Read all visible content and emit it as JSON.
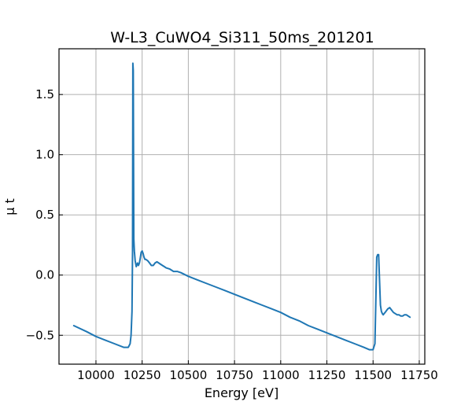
{
  "chart_data": {
    "type": "line",
    "title": "W-L3_CuWO4_Si311_50ms_201201",
    "xlabel": "Energy [eV]",
    "ylabel": "μ t",
    "xlim": [
      9800,
      11780
    ],
    "ylim": [
      -0.74,
      1.88
    ],
    "xticks": [
      10000,
      10250,
      10500,
      10750,
      11000,
      11250,
      11500,
      11750
    ],
    "yticks": [
      -0.5,
      0.0,
      0.5,
      1.0,
      1.5
    ],
    "ytick_labels": [
      "−0.5",
      "0.0",
      "0.5",
      "1.0",
      "1.5"
    ],
    "grid": true,
    "colors": {
      "series": "#1f77b4"
    },
    "series": [
      {
        "x": [
          9880,
          9950,
          10000,
          10050,
          10100,
          10150,
          10175,
          10185,
          10190,
          10195,
          10198,
          10200,
          10202,
          10205,
          10208,
          10212,
          10218,
          10225,
          10230,
          10235,
          10240,
          10245,
          10250,
          10255,
          10260,
          10265,
          10270,
          10280,
          10290,
          10300,
          10310,
          10320,
          10330,
          10340,
          10350,
          10360,
          10370,
          10380,
          10400,
          10420,
          10440,
          10460,
          10500,
          10550,
          10600,
          10650,
          10700,
          10750,
          10800,
          10850,
          10900,
          10950,
          11000,
          11050,
          11100,
          11150,
          11200,
          11250,
          11300,
          11350,
          11400,
          11450,
          11480,
          11500,
          11510,
          11515,
          11520,
          11525,
          11530,
          11535,
          11540,
          11545,
          11550,
          11555,
          11560,
          11570,
          11580,
          11590,
          11600,
          11610,
          11620,
          11630,
          11640,
          11650,
          11660,
          11670,
          11680,
          11690,
          11700
        ],
        "y": [
          -0.42,
          -0.47,
          -0.51,
          -0.54,
          -0.57,
          -0.6,
          -0.6,
          -0.57,
          -0.5,
          -0.3,
          0.2,
          1.76,
          1.7,
          0.3,
          0.2,
          0.12,
          0.07,
          0.1,
          0.08,
          0.1,
          0.14,
          0.19,
          0.2,
          0.18,
          0.15,
          0.13,
          0.13,
          0.12,
          0.1,
          0.08,
          0.08,
          0.1,
          0.11,
          0.1,
          0.09,
          0.08,
          0.07,
          0.06,
          0.05,
          0.03,
          0.03,
          0.02,
          -0.01,
          -0.04,
          -0.07,
          -0.1,
          -0.13,
          -0.16,
          -0.19,
          -0.22,
          -0.25,
          -0.28,
          -0.31,
          -0.35,
          -0.38,
          -0.42,
          -0.45,
          -0.48,
          -0.51,
          -0.54,
          -0.57,
          -0.6,
          -0.62,
          -0.62,
          -0.57,
          -0.2,
          0.15,
          0.17,
          0.17,
          -0.05,
          -0.25,
          -0.3,
          -0.32,
          -0.33,
          -0.32,
          -0.3,
          -0.28,
          -0.27,
          -0.29,
          -0.31,
          -0.32,
          -0.33,
          -0.33,
          -0.34,
          -0.34,
          -0.33,
          -0.33,
          -0.34,
          -0.35
        ]
      }
    ]
  }
}
